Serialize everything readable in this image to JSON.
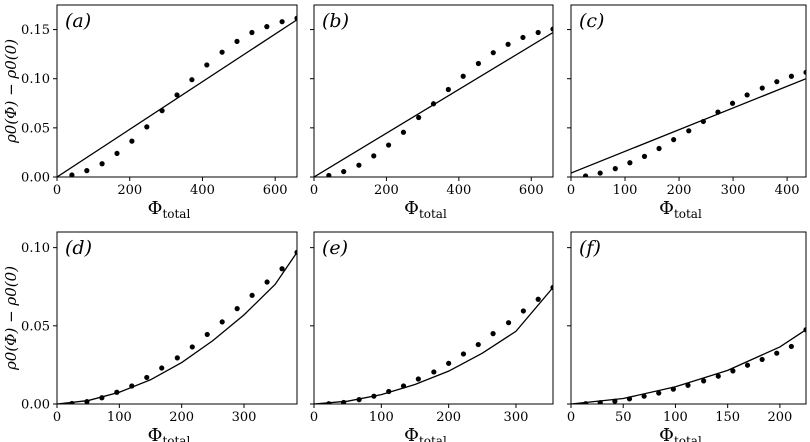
{
  "chart_data": [
    {
      "type": "scatter",
      "panel_label": "(a)",
      "xlabel_main": "Φ",
      "xlabel_sub": "total",
      "ylabel": "ρ0(Φ) − ρ0(0)",
      "xlim": [
        0,
        660
      ],
      "ylim": [
        0,
        0.175
      ],
      "xticks": [
        0,
        200,
        400,
        600
      ],
      "yticks": [
        0.0,
        0.05,
        0.1,
        0.15
      ],
      "ytick_labels": [
        "0.00",
        "0.05",
        "0.10",
        "0.15"
      ],
      "points": {
        "x": [
          41,
          82,
          124,
          165,
          206,
          247,
          289,
          330,
          371,
          412,
          454,
          495,
          536,
          577,
          619,
          660
        ],
        "y": [
          0.002,
          0.0065,
          0.0135,
          0.024,
          0.0365,
          0.051,
          0.0675,
          0.0835,
          0.099,
          0.114,
          0.127,
          0.138,
          0.147,
          0.153,
          0.158,
          0.1615
        ]
      },
      "line": {
        "x": [
          0,
          660
        ],
        "y": [
          0,
          0.16
        ]
      }
    },
    {
      "type": "scatter",
      "panel_label": "(b)",
      "xlabel_main": "Φ",
      "xlabel_sub": "total",
      "ylabel": "",
      "xlim": [
        0,
        660
      ],
      "ylim": [
        0,
        0.175
      ],
      "xticks": [
        0,
        200,
        400,
        600
      ],
      "yticks": [],
      "ytick_labels": [],
      "points": {
        "x": [
          41,
          82,
          124,
          165,
          206,
          247,
          289,
          330,
          371,
          412,
          454,
          495,
          536,
          577,
          619,
          660
        ],
        "y": [
          0.0015,
          0.0055,
          0.012,
          0.0215,
          0.0325,
          0.0455,
          0.0605,
          0.0745,
          0.089,
          0.1025,
          0.1155,
          0.1265,
          0.135,
          0.142,
          0.147,
          0.1505
        ]
      },
      "line": {
        "x": [
          0,
          660
        ],
        "y": [
          0,
          0.147
        ]
      }
    },
    {
      "type": "scatter",
      "panel_label": "(c)",
      "xlabel_main": "Φ",
      "xlabel_sub": "total",
      "ylabel": "",
      "xlim": [
        0,
        435
      ],
      "ylim": [
        0,
        0.175
      ],
      "xticks": [
        0,
        100,
        200,
        300,
        400
      ],
      "yticks": [],
      "ytick_labels": [],
      "points": {
        "x": [
          27,
          54,
          82,
          109,
          136,
          163,
          190,
          218,
          245,
          272,
          299,
          326,
          354,
          381,
          408,
          435
        ],
        "y": [
          0.001,
          0.004,
          0.0085,
          0.0145,
          0.021,
          0.029,
          0.038,
          0.047,
          0.0565,
          0.066,
          0.075,
          0.0835,
          0.0905,
          0.097,
          0.1025,
          0.1065
        ]
      },
      "line": {
        "x": [
          0,
          435
        ],
        "y": [
          0.004,
          0.1
        ]
      }
    },
    {
      "type": "scatter",
      "panel_label": "(d)",
      "xlabel_main": "Φ",
      "xlabel_sub": "total",
      "ylabel": "ρ0(Φ) − ρ0(0)",
      "xlim": [
        0,
        385
      ],
      "ylim": [
        0,
        0.11
      ],
      "xticks": [
        0,
        100,
        200,
        300
      ],
      "yticks": [
        0.0,
        0.05,
        0.1
      ],
      "ytick_labels": [
        "0.00",
        "0.05",
        "0.10"
      ],
      "points": {
        "x": [
          24,
          48,
          72,
          96,
          120,
          144,
          168,
          193,
          217,
          241,
          265,
          289,
          313,
          337,
          361,
          385
        ],
        "y": [
          0.0003,
          0.0015,
          0.004,
          0.0075,
          0.0115,
          0.017,
          0.023,
          0.0295,
          0.0365,
          0.0445,
          0.0525,
          0.061,
          0.0695,
          0.078,
          0.0865,
          0.097
        ]
      },
      "line": {
        "x": [
          0,
          50,
          100,
          150,
          200,
          250,
          300,
          350,
          385
        ],
        "y": [
          0,
          0.0022,
          0.0075,
          0.0155,
          0.0265,
          0.0405,
          0.057,
          0.0765,
          0.097
        ]
      }
    },
    {
      "type": "scatter",
      "panel_label": "(e)",
      "xlabel_main": "Φ",
      "xlabel_sub": "total",
      "ylabel": "",
      "xlim": [
        0,
        355
      ],
      "ylim": [
        0,
        0.11
      ],
      "xticks": [
        0,
        100,
        200,
        300
      ],
      "yticks": [],
      "ytick_labels": [],
      "points": {
        "x": [
          22,
          44,
          67,
          89,
          111,
          133,
          155,
          178,
          200,
          222,
          244,
          266,
          289,
          311,
          333,
          355
        ],
        "y": [
          0.0002,
          0.001,
          0.0028,
          0.005,
          0.008,
          0.0115,
          0.016,
          0.0205,
          0.026,
          0.032,
          0.038,
          0.045,
          0.052,
          0.0595,
          0.067,
          0.0745
        ]
      },
      "line": {
        "x": [
          0,
          50,
          100,
          150,
          200,
          250,
          300,
          355
        ],
        "y": [
          0,
          0.0018,
          0.006,
          0.0125,
          0.021,
          0.0325,
          0.0465,
          0.0745
        ]
      }
    },
    {
      "type": "scatter",
      "panel_label": "(f)",
      "xlabel_main": "Φ",
      "xlabel_sub": "total",
      "ylabel": "",
      "xlim": [
        0,
        225
      ],
      "ylim": [
        0,
        0.11
      ],
      "xticks": [
        0,
        50,
        100,
        150,
        200
      ],
      "yticks": [],
      "ytick_labels": [],
      "points": {
        "x": [
          14,
          28,
          42,
          56,
          70,
          84,
          98,
          112,
          127,
          141,
          155,
          169,
          183,
          197,
          211,
          225
        ],
        "y": [
          0.0002,
          0.0008,
          0.0018,
          0.0033,
          0.005,
          0.007,
          0.0095,
          0.012,
          0.0148,
          0.0178,
          0.0212,
          0.0248,
          0.0285,
          0.0325,
          0.0368,
          0.0475
        ]
      },
      "line": {
        "x": [
          0,
          50,
          100,
          150,
          200,
          225
        ],
        "y": [
          0,
          0.0035,
          0.011,
          0.0215,
          0.0365,
          0.0475
        ]
      }
    }
  ]
}
